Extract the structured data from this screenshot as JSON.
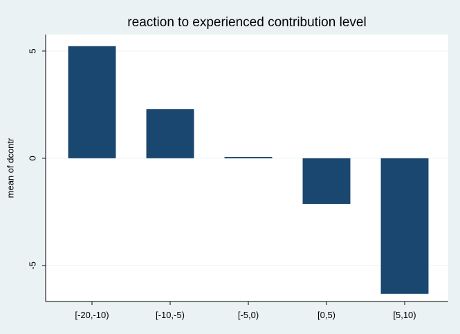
{
  "chart_data": {
    "type": "bar",
    "title": "reaction to experienced contribution level",
    "y_label": "mean of dcontr",
    "categories": [
      "[-20,-10)",
      "[-10,-5)",
      "[-5,0)",
      "[0,5)",
      "[5,10)"
    ],
    "values": [
      5.23,
      2.29,
      0.06,
      -2.13,
      -6.32
    ],
    "color": "#1a476f",
    "ylim": [
      -6.68,
      5.77
    ],
    "yticks": [
      -5,
      0,
      5
    ],
    "grid": true
  }
}
